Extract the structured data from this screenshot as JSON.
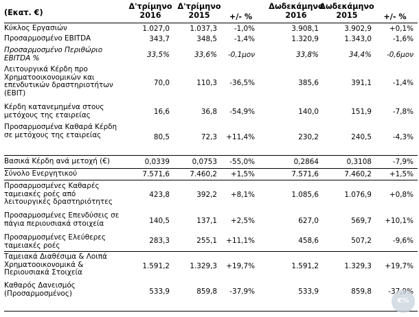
{
  "header": {
    "col0": "(Εκατ. €)",
    "col1": "Δ'τρίμηνο\n2016",
    "col2": "Δ'τρίμηνο\n2015",
    "col3": "+/- %",
    "col4": "Δωδεκάμηνο\n2016",
    "col5": "Δωδεκάμηνο\n2015",
    "col6": "+/- %"
  },
  "rows": [
    {
      "label": "Κύκλος Εργασιών",
      "v": [
        "1.027,0",
        "1.037,3",
        "-1,0%",
        "3.908,1",
        "3.902,9",
        "+0,1%"
      ]
    },
    {
      "label": "Προσαρμοσμένο EBITDA",
      "v": [
        "343,7",
        "348,5",
        "-1,4%",
        "1.320,9",
        "1.343,0",
        "-1,6%"
      ]
    },
    {
      "label": "Προσαρμοσμένο Περιθώριο EBITDA %",
      "v": [
        "33,5%",
        "33,6%",
        "-0,1μον",
        "33,8%",
        "34,4%",
        "-0,6μον"
      ]
    },
    {
      "label": "Λειτουργικά Κέρδη προ Χρηματοοικονομικών και επενδυτικών δραστηριοτήτων (EBIT)",
      "v": [
        "70,0",
        "110,3",
        "-36,5%",
        "385,6",
        "391,1",
        "-1,4%"
      ]
    },
    {
      "label": "Κέρδη κατανεμημένα στους μετόχους της εταιρείας",
      "v": [
        "16,6",
        "36,8",
        "-54,9%",
        "140,0",
        "151,9",
        "-7,8%"
      ]
    },
    {
      "label": "Προσαρμοσμένα Καθαρά Κέρδη σε μετόχους της εταιρείας",
      "v": [
        "80,5",
        "72,3",
        "+11,4%",
        "230,2",
        "240,5",
        "-4,3%"
      ]
    },
    {
      "label": "Βασικά Κέρδη ανά μετοχή (€)",
      "v": [
        "0,0339",
        "0,0753",
        "-55,0%",
        "0,2864",
        "0,3108",
        "-7,9%"
      ]
    },
    {
      "label": "Σύνολο Ενεργητικού",
      "v": [
        "7.571,6",
        "7.460,2",
        "+1,5%",
        "7.571,6",
        "7.460,2",
        "+1,5%"
      ]
    },
    {
      "label": "Προσαρμοσμένες Καθαρές ταμειακές ροές από λειτουργικές δραστηριότητες",
      "v": [
        "423,8",
        "392,2",
        "+8,1%",
        "1.085,6",
        "1.076,9",
        "+0,8%"
      ]
    },
    {
      "label": "Προσαρμοσμένες Επενδύσεις σε πάγια περιουσιακά στοιχεία",
      "v": [
        "140,5",
        "137,1",
        "+2,5%",
        "627,0",
        "569,7",
        "+10,1%"
      ]
    },
    {
      "label": "Προσαρμοσμένες Ελεύθερες ταμειακές ροές",
      "v": [
        "283,3",
        "255,1",
        "+11,1%",
        "458,6",
        "507,2",
        "-9,6%"
      ]
    },
    {
      "label": "Ταμειακά Διαθέσιμα & Λοιπά Χρηματοοικονομικά & Περιουσιακά Στοιχεία",
      "v": [
        "1.591,2",
        "1.329,3",
        "+19,7%",
        "1.591,2",
        "1.329,3",
        "+19,7%"
      ]
    },
    {
      "label": "Καθαρός Δανεισμός (Προσαρμοσμένος)",
      "v": [
        "533,9",
        "859,8",
        "-37,9%",
        "533,9",
        "859,8",
        "-37,9%"
      ]
    }
  ],
  "watermark": "€%"
}
